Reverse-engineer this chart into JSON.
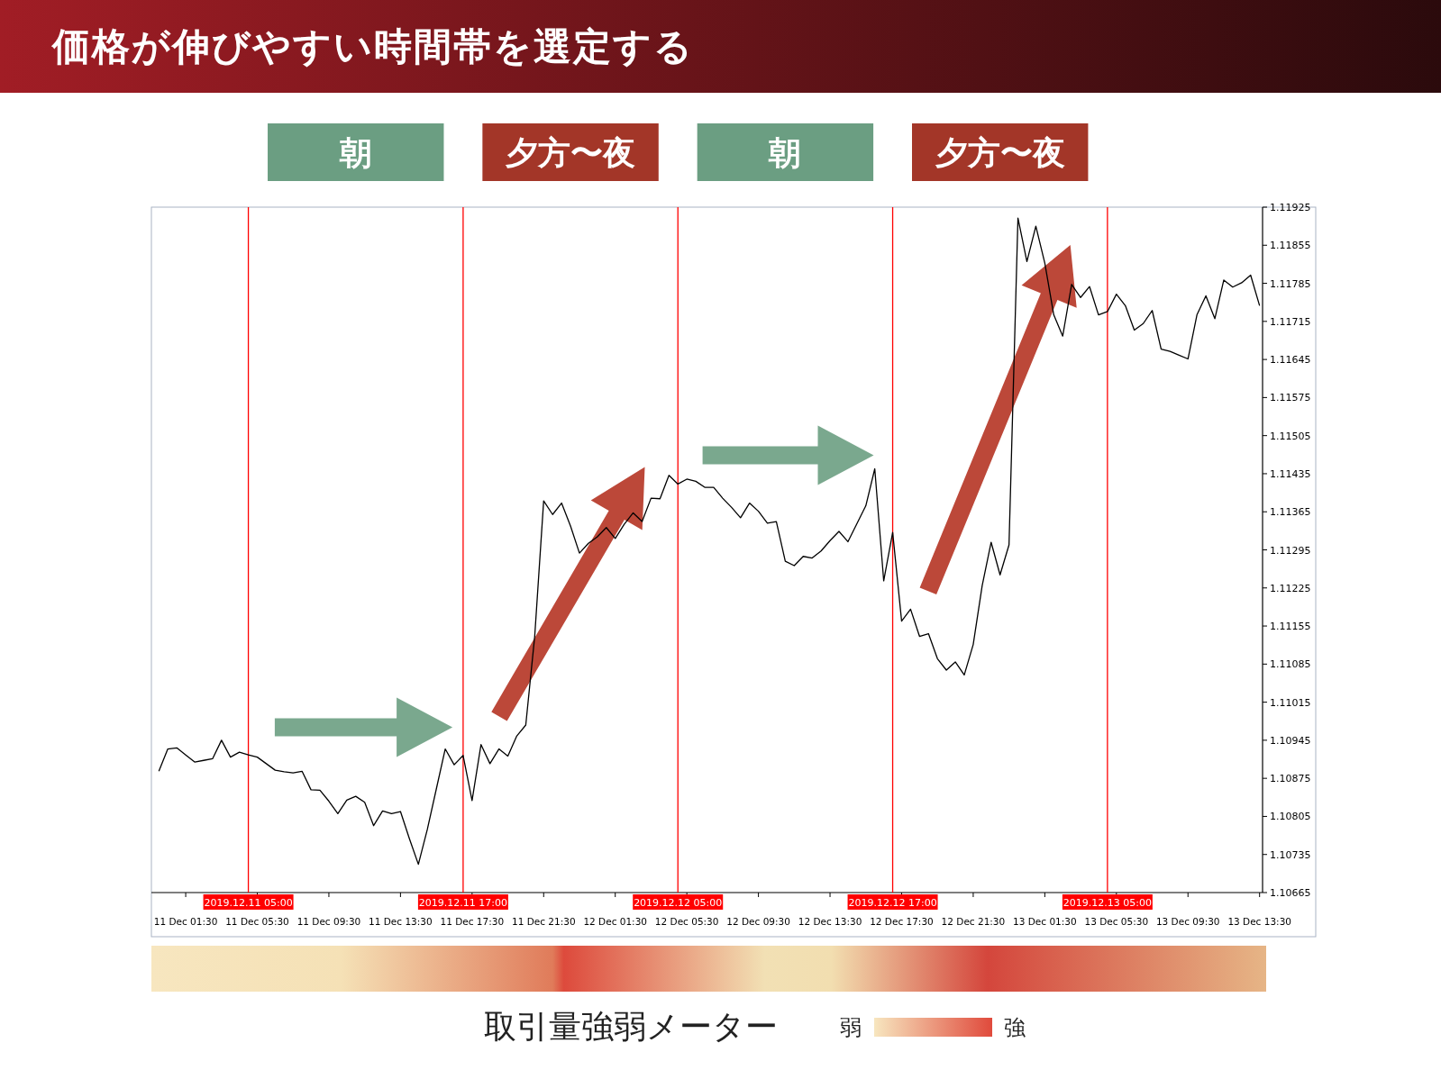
{
  "chart_data": {
    "type": "line",
    "title": "価格が伸びやすい時間帯を選定する",
    "x": [
      "2019-12-11T00:00",
      "2019-12-11T00:30",
      "2019-12-11T01:00",
      "2019-12-11T01:30",
      "2019-12-11T02:00",
      "2019-12-11T02:30",
      "2019-12-11T03:00",
      "2019-12-11T03:30",
      "2019-12-11T04:00",
      "2019-12-11T04:30",
      "2019-12-11T05:00",
      "2019-12-11T05:30",
      "2019-12-11T06:00",
      "2019-12-11T06:30",
      "2019-12-11T07:00",
      "2019-12-11T07:30",
      "2019-12-11T08:00",
      "2019-12-11T08:30",
      "2019-12-11T09:00",
      "2019-12-11T09:30",
      "2019-12-11T10:00",
      "2019-12-11T10:30",
      "2019-12-11T11:00",
      "2019-12-11T11:30",
      "2019-12-11T12:00",
      "2019-12-11T12:30",
      "2019-12-11T13:00",
      "2019-12-11T13:30",
      "2019-12-11T14:00",
      "2019-12-11T14:30",
      "2019-12-11T15:00",
      "2019-12-11T15:30",
      "2019-12-11T16:00",
      "2019-12-11T16:30",
      "2019-12-11T17:00",
      "2019-12-11T17:30",
      "2019-12-11T18:00",
      "2019-12-11T18:30",
      "2019-12-11T19:00",
      "2019-12-11T19:30",
      "2019-12-11T20:00",
      "2019-12-11T20:30",
      "2019-12-11T21:00",
      "2019-12-11T21:30",
      "2019-12-11T22:00",
      "2019-12-11T22:30",
      "2019-12-11T23:00",
      "2019-12-11T23:30",
      "2019-12-12T00:00",
      "2019-12-12T00:30",
      "2019-12-12T01:00",
      "2019-12-12T01:30",
      "2019-12-12T02:00",
      "2019-12-12T02:30",
      "2019-12-12T03:00",
      "2019-12-12T03:30",
      "2019-12-12T04:00",
      "2019-12-12T04:30",
      "2019-12-12T05:00",
      "2019-12-12T05:30",
      "2019-12-12T06:00",
      "2019-12-12T06:30",
      "2019-12-12T07:00",
      "2019-12-12T07:30",
      "2019-12-12T08:00",
      "2019-12-12T08:30",
      "2019-12-12T09:00",
      "2019-12-12T09:30",
      "2019-12-12T10:00",
      "2019-12-12T10:30",
      "2019-12-12T11:00",
      "2019-12-12T11:30",
      "2019-12-12T12:00",
      "2019-12-12T12:30",
      "2019-12-12T13:00",
      "2019-12-12T13:30",
      "2019-12-12T14:00",
      "2019-12-12T14:30",
      "2019-12-12T15:00",
      "2019-12-12T15:30",
      "2019-12-12T16:00",
      "2019-12-12T16:30",
      "2019-12-12T17:00",
      "2019-12-12T17:30",
      "2019-12-12T18:00",
      "2019-12-12T18:30",
      "2019-12-12T19:00",
      "2019-12-12T19:30",
      "2019-12-12T20:00",
      "2019-12-12T20:30",
      "2019-12-12T21:00",
      "2019-12-12T21:30",
      "2019-12-12T22:00",
      "2019-12-12T22:30",
      "2019-12-12T23:00",
      "2019-12-12T23:30",
      "2019-12-13T00:00",
      "2019-12-13T00:30",
      "2019-12-13T01:00",
      "2019-12-13T01:30",
      "2019-12-13T02:00",
      "2019-12-13T02:30",
      "2019-12-13T03:00",
      "2019-12-13T03:30",
      "2019-12-13T04:00",
      "2019-12-13T04:30",
      "2019-12-13T05:00",
      "2019-12-13T05:30",
      "2019-12-13T06:00",
      "2019-12-13T06:30",
      "2019-12-13T07:00",
      "2019-12-13T07:30",
      "2019-12-13T08:00",
      "2019-12-13T08:30",
      "2019-12-13T09:00",
      "2019-12-13T09:30",
      "2019-12-13T10:00",
      "2019-12-13T10:30",
      "2019-12-13T11:00",
      "2019-12-13T11:30",
      "2019-12-13T12:00",
      "2019-12-13T12:30",
      "2019-12-13T13:00",
      "2019-12-13T13:30"
    ],
    "series": [
      {
        "color": "#000000",
        "values": [
          1.10888,
          1.10929,
          1.10931,
          1.10918,
          1.10905,
          1.10908,
          1.10911,
          1.10945,
          1.10914,
          1.10923,
          1.10918,
          1.10914,
          1.10902,
          1.1089,
          1.10887,
          1.10885,
          1.10888,
          1.10854,
          1.10853,
          1.10833,
          1.1081,
          1.10835,
          1.10842,
          1.10831,
          1.10788,
          1.10815,
          1.1081,
          1.10814,
          1.10764,
          1.10717,
          1.10781,
          1.10855,
          1.10929,
          1.109,
          1.10917,
          1.10834,
          1.10937,
          1.10902,
          1.10929,
          1.10916,
          1.10953,
          1.10973,
          1.11136,
          1.11385,
          1.1136,
          1.11381,
          1.11339,
          1.11289,
          1.11307,
          1.11319,
          1.11336,
          1.11316,
          1.11342,
          1.11363,
          1.11347,
          1.1139,
          1.11389,
          1.11432,
          1.11416,
          1.11425,
          1.11421,
          1.1141,
          1.1141,
          1.1139,
          1.11373,
          1.11354,
          1.11381,
          1.11366,
          1.11344,
          1.11347,
          1.11274,
          1.11266,
          1.11283,
          1.1128,
          1.11293,
          1.11312,
          1.11329,
          1.1131,
          1.11343,
          1.11376,
          1.11444,
          1.11238,
          1.11327,
          1.11164,
          1.11186,
          1.11136,
          1.11141,
          1.11095,
          1.11074,
          1.11089,
          1.11065,
          1.11121,
          1.11229,
          1.11309,
          1.11249,
          1.11304,
          1.11905,
          1.11825,
          1.1189,
          1.11822,
          1.11727,
          1.11688,
          1.11783,
          1.11759,
          1.11779,
          1.11727,
          1.11733,
          1.11765,
          1.11744,
          1.11699,
          1.11711,
          1.11735,
          1.11664,
          1.1166,
          1.11653,
          1.11646,
          1.11727,
          1.11762,
          1.1172,
          1.11791,
          1.11778,
          1.11786,
          1.118,
          1.11744
        ]
      }
    ],
    "xlim": [
      "2019-12-10T23:35",
      "2019-12-13T13:40"
    ],
    "xticks": [
      {
        "value": "2019-12-11T01:30",
        "label": "11 Dec 01:30"
      },
      {
        "value": "2019-12-11T05:30",
        "label": "11 Dec 05:30"
      },
      {
        "value": "2019-12-11T09:30",
        "label": "11 Dec 09:30"
      },
      {
        "value": "2019-12-11T13:30",
        "label": "11 Dec 13:30"
      },
      {
        "value": "2019-12-11T17:30",
        "label": "11 Dec 17:30"
      },
      {
        "value": "2019-12-11T21:30",
        "label": "11 Dec 21:30"
      },
      {
        "value": "2019-12-12T01:30",
        "label": "12 Dec 01:30"
      },
      {
        "value": "2019-12-12T05:30",
        "label": "12 Dec 05:30"
      },
      {
        "value": "2019-12-12T09:30",
        "label": "12 Dec 09:30"
      },
      {
        "value": "2019-12-12T13:30",
        "label": "12 Dec 13:30"
      },
      {
        "value": "2019-12-12T17:30",
        "label": "12 Dec 17:30"
      },
      {
        "value": "2019-12-12T21:30",
        "label": "12 Dec 21:30"
      },
      {
        "value": "2019-12-13T01:30",
        "label": "13 Dec 01:30"
      },
      {
        "value": "2019-12-13T05:30",
        "label": "13 Dec 05:30"
      },
      {
        "value": "2019-12-13T09:30",
        "label": "13 Dec 09:30"
      },
      {
        "value": "2019-12-13T13:30",
        "label": "13 Dec 13:30"
      }
    ],
    "ylim": [
      1.10665,
      1.11925
    ],
    "yticks": [
      1.10665,
      1.10735,
      1.10805,
      1.10875,
      1.10945,
      1.11015,
      1.11085,
      1.11155,
      1.11225,
      1.11295,
      1.11365,
      1.11435,
      1.11505,
      1.11575,
      1.11645,
      1.11715,
      1.11785,
      1.11855,
      1.11925
    ],
    "ref_lines": [
      {
        "axis": "x",
        "value": "2019-12-11T05:00",
        "label": "2019.12.11 05:00",
        "color": "#ff0000"
      },
      {
        "axis": "x",
        "value": "2019-12-11T17:00",
        "label": "2019.12.11 17:00",
        "color": "#ff0000"
      },
      {
        "axis": "x",
        "value": "2019-12-12T05:00",
        "label": "2019.12.12 05:00",
        "color": "#ff0000"
      },
      {
        "axis": "x",
        "value": "2019-12-12T17:00",
        "label": "2019.12.12 17:00",
        "color": "#ff0000"
      },
      {
        "axis": "x",
        "value": "2019-12-13T05:00",
        "label": "2019.12.13 05:00",
        "color": "#ff0000"
      }
    ],
    "annotations": [
      "朝",
      "夕方〜夜",
      "朝",
      "夕方〜夜",
      "取引量強弱メーター",
      "弱",
      "強"
    ]
  }
}
